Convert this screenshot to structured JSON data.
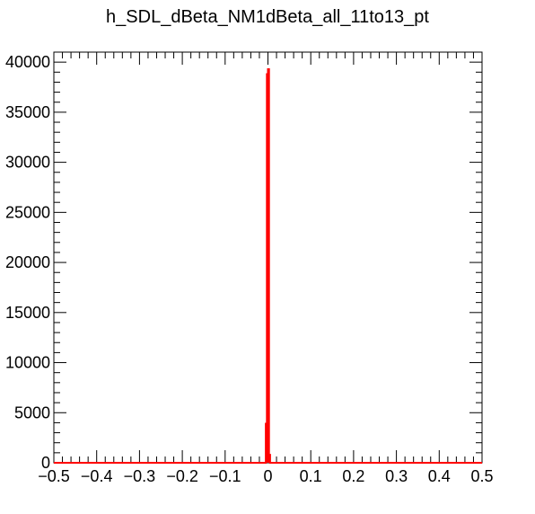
{
  "chart_data": {
    "type": "histogram",
    "title": "h_SDL_dBeta_NM1dBeta_all_11to13_pt",
    "xlabel": "",
    "ylabel": "",
    "xlim": [
      -0.5,
      0.5
    ],
    "ylim": [
      0,
      41000
    ],
    "x_ticks": [
      -0.5,
      -0.4,
      -0.3,
      -0.2,
      -0.1,
      0,
      0.1,
      0.2,
      0.3,
      0.4,
      0.5
    ],
    "x_tick_labels": [
      "−0.5",
      "−0.4",
      "−0.3",
      "−0.2",
      "−0.1",
      "0",
      "0.1",
      "0.2",
      "0.3",
      "0.4",
      "0.5"
    ],
    "y_ticks": [
      0,
      5000,
      10000,
      15000,
      20000,
      25000,
      30000,
      35000,
      40000
    ],
    "y_tick_labels": [
      "0",
      "5000",
      "10000",
      "15000",
      "20000",
      "25000",
      "30000",
      "35000",
      "40000"
    ],
    "grid": false,
    "legend": "none",
    "series": [
      {
        "color": "#ff0000",
        "bins": [
          {
            "x0": -0.005,
            "x1": -0.0025,
            "y": 3900
          },
          {
            "x0": -0.0025,
            "x1": 0.0,
            "y": 38800
          },
          {
            "x0": 0.0,
            "x1": 0.0025,
            "y": 39300
          },
          {
            "x0": 0.0025,
            "x1": 0.005,
            "y": 800
          }
        ]
      }
    ]
  }
}
